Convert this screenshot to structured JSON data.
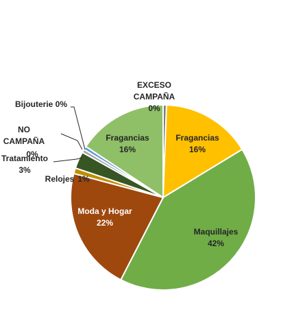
{
  "chart_data": {
    "type": "pie",
    "title": "",
    "slices": [
      {
        "label": "EXCESO CAMPAÑA",
        "value": 0,
        "display": "0%",
        "color": "#7f7f7f",
        "text_color": "#262626"
      },
      {
        "label": "Fragancias",
        "value": 16,
        "display": "16%",
        "color": "#ffc000",
        "text_color": "#262626"
      },
      {
        "label": "Maquillajes",
        "value": 42,
        "display": "42%",
        "color": "#70ad47",
        "text_color": "#262626"
      },
      {
        "label": "Moda y Hogar",
        "value": 22,
        "display": "22%",
        "color": "#9e480e",
        "text_color": "#ffffff"
      },
      {
        "label": "Relojes",
        "value": 1,
        "display": "1%",
        "color": "#bf8f00",
        "text_color": "#262626"
      },
      {
        "label": "Tratamiento",
        "value": 3,
        "display": "3%",
        "color": "#375623",
        "text_color": "#262626"
      },
      {
        "label": "NO CAMPAÑA",
        "value": 0,
        "display": "0%",
        "color": "#a5a5a5",
        "text_color": "#262626"
      },
      {
        "label": "Bijouterie",
        "value": 0,
        "display": "0%",
        "color": "#5b9bd5",
        "text_color": "#262626"
      },
      {
        "label": "Fragancias",
        "value": 16,
        "display": "16%",
        "color": "#8fc067",
        "text_color": "#262626"
      }
    ]
  }
}
